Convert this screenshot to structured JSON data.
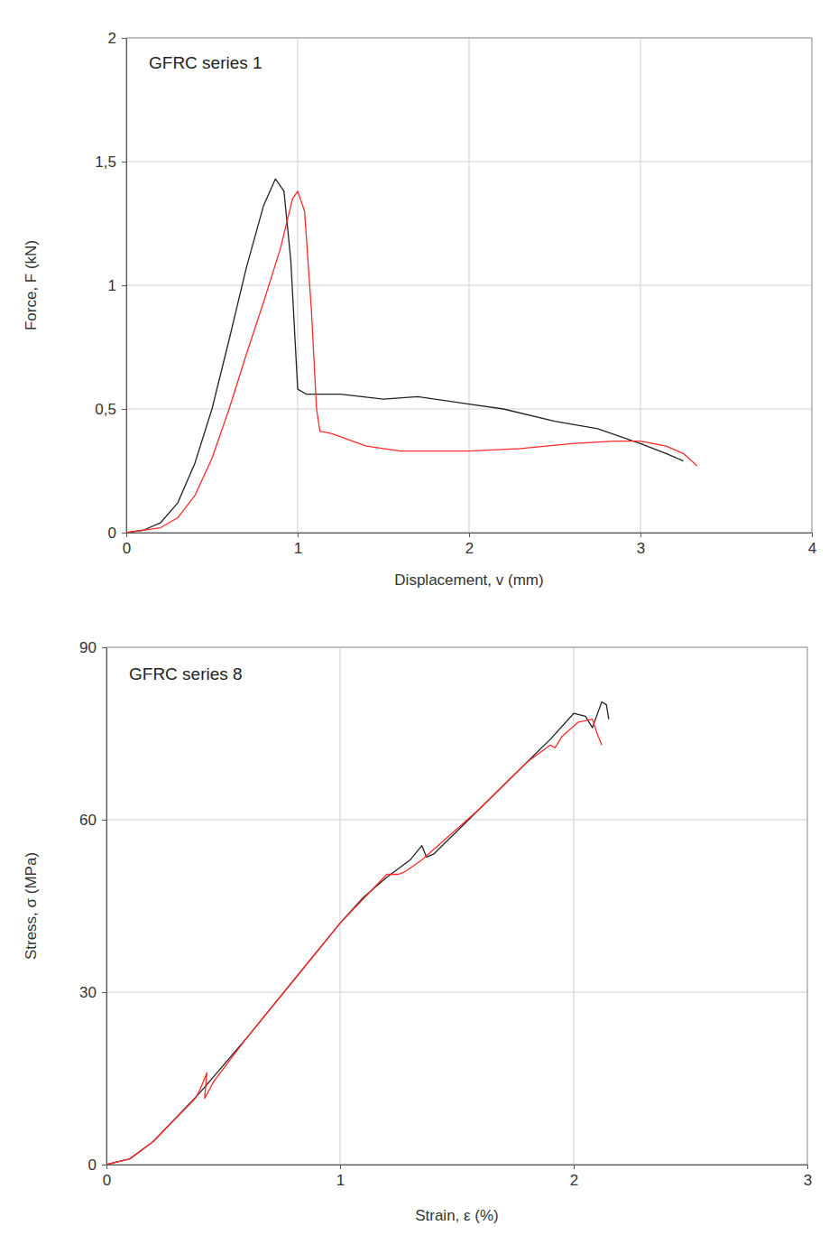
{
  "chart_data": [
    {
      "type": "line",
      "title": "GFRC series 1",
      "x_label": "Displacement, v (mm)",
      "y_label": "Force, F (kN)",
      "xlim": [
        0,
        4
      ],
      "ylim": [
        0,
        2
      ],
      "xticks": [
        0,
        1,
        2,
        3,
        4
      ],
      "yticks": [
        0,
        {
          "value": 0.5,
          "label": "0,5"
        },
        1,
        {
          "value": 1.5,
          "label": "1,5"
        },
        2
      ],
      "grid": true,
      "series": [
        {
          "color": "#222222",
          "x": [
            0,
            0.1,
            0.2,
            0.3,
            0.4,
            0.5,
            0.6,
            0.7,
            0.8,
            0.87,
            0.92,
            0.96,
            1.0,
            1.05,
            1.25,
            1.5,
            1.7,
            2.0,
            2.2,
            2.5,
            2.75,
            3.0,
            3.15,
            3.25
          ],
          "values": [
            0,
            0.01,
            0.04,
            0.12,
            0.28,
            0.5,
            0.78,
            1.07,
            1.32,
            1.43,
            1.38,
            1.1,
            0.58,
            0.56,
            0.56,
            0.54,
            0.55,
            0.52,
            0.5,
            0.45,
            0.42,
            0.36,
            0.32,
            0.29
          ]
        },
        {
          "color": "#ff2a2a",
          "x": [
            0,
            0.2,
            0.3,
            0.4,
            0.5,
            0.6,
            0.7,
            0.8,
            0.9,
            0.97,
            1.0,
            1.04,
            1.08,
            1.11,
            1.13,
            1.2,
            1.4,
            1.6,
            2.0,
            2.3,
            2.6,
            2.85,
            3.0,
            3.15,
            3.25,
            3.33
          ],
          "values": [
            0,
            0.02,
            0.06,
            0.15,
            0.3,
            0.5,
            0.72,
            0.93,
            1.15,
            1.35,
            1.38,
            1.3,
            0.9,
            0.5,
            0.41,
            0.4,
            0.35,
            0.33,
            0.33,
            0.34,
            0.36,
            0.37,
            0.37,
            0.35,
            0.32,
            0.27
          ]
        }
      ]
    },
    {
      "type": "line",
      "title": "GFRC series 8",
      "x_label": "Strain, ε (%)",
      "y_label": "Stress, σ (MPa)",
      "xlim": [
        0,
        3
      ],
      "ylim": [
        0,
        90
      ],
      "xticks": [
        0,
        1,
        2,
        3
      ],
      "yticks": [
        0,
        30,
        60,
        90
      ],
      "grid": true,
      "series": [
        {
          "color": "#222222",
          "x": [
            0,
            0.1,
            0.2,
            0.4,
            0.6,
            0.8,
            1.0,
            1.1,
            1.2,
            1.3,
            1.35,
            1.37,
            1.4,
            1.6,
            1.8,
            1.9,
            2.0,
            2.05,
            2.08,
            2.12,
            2.14,
            2.15
          ],
          "values": [
            0,
            1,
            4,
            12.5,
            22,
            32,
            42,
            46.5,
            50,
            53,
            55.5,
            53.5,
            54,
            62,
            70,
            74,
            78.5,
            78,
            76,
            80.5,
            80,
            77.5
          ]
        },
        {
          "color": "#ff2a2a",
          "x": [
            0,
            0.1,
            0.2,
            0.38,
            0.4,
            0.43,
            0.42,
            0.46,
            0.6,
            0.8,
            1.0,
            1.2,
            1.25,
            1.28,
            1.35,
            1.6,
            1.8,
            1.9,
            1.92,
            1.95,
            2.02,
            2.08,
            2.1,
            2.12
          ],
          "values": [
            0,
            1,
            4,
            11.5,
            13,
            16,
            11.5,
            14.5,
            22,
            32,
            42,
            50.5,
            50.5,
            51,
            53,
            62,
            70,
            73,
            72.5,
            74.5,
            77,
            77.5,
            75,
            73
          ]
        }
      ]
    }
  ]
}
